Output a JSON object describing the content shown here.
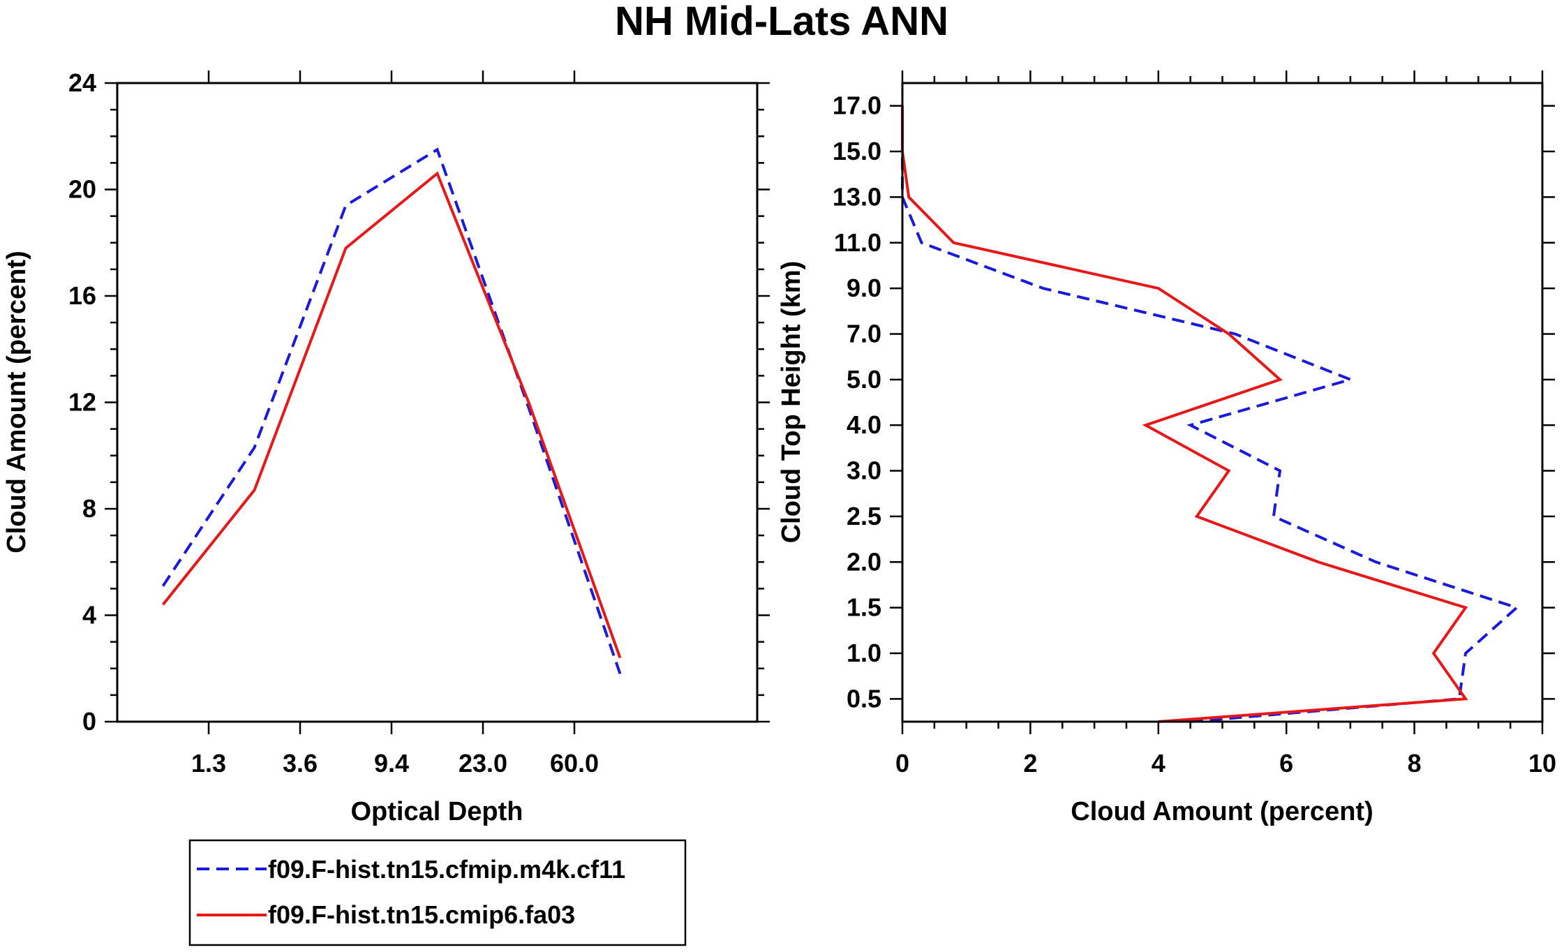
{
  "title": "NH Mid-Lats ANN",
  "legend": {
    "series1": "f09.F-hist.tn15.cfmip.m4k.cf11",
    "series2": "f09.F-hist.tn15.cmip6.fa03"
  },
  "colors": {
    "series1": "#1a1adb",
    "series2": "#e81818"
  },
  "chart_data": [
    {
      "type": "line",
      "title": "",
      "xlabel": "Optical Depth",
      "ylabel": "Cloud Amount (percent)",
      "xbins": 7,
      "xticklabels": [
        "1.3",
        "3.6",
        "9.4",
        "23.0",
        "60.0"
      ],
      "xtick_bin_edges": [
        1,
        2,
        3,
        4,
        5
      ],
      "ylim": [
        0,
        24
      ],
      "yticks": [
        0,
        4,
        8,
        12,
        16,
        20,
        24
      ],
      "series": [
        {
          "name": "f09.F-hist.tn15.cfmip.m4k.cf11",
          "style": "dashed",
          "x": [
            0,
            1,
            2,
            3,
            4,
            5
          ],
          "values": [
            5.1,
            10.3,
            19.4,
            21.5,
            11.8,
            1.8
          ]
        },
        {
          "name": "f09.F-hist.tn15.cmip6.fa03",
          "style": "solid",
          "x": [
            0,
            1,
            2,
            3,
            4,
            5
          ],
          "values": [
            4.4,
            8.7,
            17.8,
            20.6,
            12.0,
            2.4
          ]
        }
      ]
    },
    {
      "type": "line",
      "title": "",
      "xlabel": "Cloud Amount (percent)",
      "ylabel": "Cloud Top Height (km)",
      "xlim": [
        0,
        10
      ],
      "xticks": [
        0,
        2,
        4,
        6,
        8,
        10
      ],
      "ylevels": 14,
      "yticklabels": [
        "0.5",
        "1.0",
        "1.5",
        "2.0",
        "2.5",
        "3.0",
        "4.0",
        "5.0",
        "7.0",
        "9.0",
        "11.0",
        "13.0",
        "15.0",
        "17.0"
      ],
      "series": [
        {
          "name": "f09.F-hist.tn15.cfmip.m4k.cf11",
          "style": "dashed",
          "heights": [
            0.0,
            0.5,
            1.0,
            1.5,
            2.0,
            2.5,
            3.0,
            4.0,
            5.0,
            7.0,
            9.0,
            11.0,
            13.0,
            15.0,
            17.0
          ],
          "values": [
            4.5,
            8.7,
            8.8,
            9.6,
            7.4,
            5.8,
            5.9,
            4.5,
            7.0,
            5.2,
            2.2,
            0.3,
            0.0,
            0.0,
            0.0
          ]
        },
        {
          "name": "f09.F-hist.tn15.cmip6.fa03",
          "style": "solid",
          "heights": [
            0.0,
            0.5,
            1.0,
            1.5,
            2.0,
            2.5,
            3.0,
            4.0,
            5.0,
            7.0,
            9.0,
            11.0,
            13.0,
            15.0,
            17.0
          ],
          "values": [
            4.0,
            8.8,
            8.3,
            8.8,
            6.5,
            4.6,
            5.1,
            3.8,
            5.9,
            5.1,
            4.0,
            0.8,
            0.1,
            0.0,
            0.0
          ]
        }
      ]
    }
  ]
}
